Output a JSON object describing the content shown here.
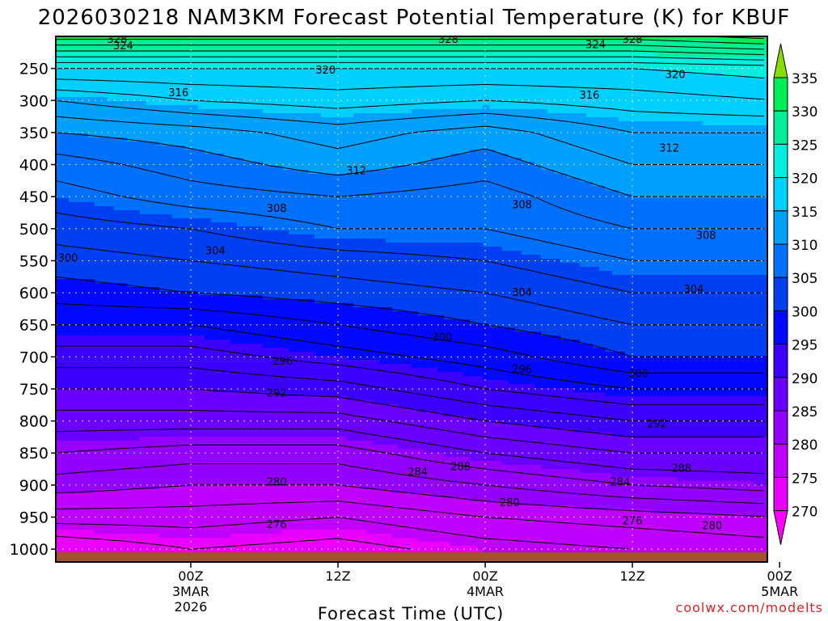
{
  "chart_data": {
    "type": "heatmap",
    "title": "2026030218 NAM3KM Forecast Potential Temperature (K) for KBUF",
    "xlabel": "Forecast Time (UTC)",
    "ylabel": "",
    "credit": "coolwx.com/modelts",
    "x_range_hours": [
      -5,
      53
    ],
    "x_ticks": [
      {
        "hour": 6,
        "lines": [
          "00Z",
          "3MAR",
          "2026"
        ]
      },
      {
        "hour": 18,
        "lines": [
          "12Z"
        ]
      },
      {
        "hour": 30,
        "lines": [
          "00Z",
          "4MAR"
        ]
      },
      {
        "hour": 42,
        "lines": [
          "12Z"
        ]
      },
      {
        "hour": 54,
        "lines": [
          "00Z",
          "5MAR"
        ]
      }
    ],
    "y_range_hpa": [
      200,
      1020
    ],
    "y_ticks": [
      250,
      300,
      350,
      400,
      450,
      500,
      550,
      600,
      650,
      700,
      750,
      800,
      850,
      900,
      950,
      1000
    ],
    "colorbar": {
      "levels": [
        270,
        275,
        280,
        285,
        290,
        295,
        300,
        305,
        310,
        315,
        320,
        325,
        330,
        335
      ],
      "colors": [
        "#ff00ff",
        "#ea00ff",
        "#c000ff",
        "#9400ff",
        "#6a00ff",
        "#3c00ff",
        "#0008ff",
        "#0040f0",
        "#0070ff",
        "#00a0ff",
        "#00d0ff",
        "#00eedd",
        "#00ee9a",
        "#00ee55",
        "#88dd00",
        "#ff00ff"
      ]
    },
    "profile_times_hours": [
      -5,
      6,
      18,
      30,
      42,
      54
    ],
    "theta_profiles": [
      {
        "pressure_hpa": 1000,
        "theta_k": [
          272,
          274,
          273,
          275,
          276,
          277
        ]
      },
      {
        "pressure_hpa": 950,
        "theta_k": [
          277,
          277,
          276,
          278,
          279,
          280
        ]
      },
      {
        "pressure_hpa": 900,
        "theta_k": [
          281,
          280,
          280,
          282,
          284,
          285
        ]
      },
      {
        "pressure_hpa": 850,
        "theta_k": [
          284,
          283,
          283,
          286,
          288,
          288
        ]
      },
      {
        "pressure_hpa": 800,
        "theta_k": [
          287,
          287,
          287,
          290,
          292,
          292
        ]
      },
      {
        "pressure_hpa": 750,
        "theta_k": [
          290,
          290,
          291,
          294,
          296,
          296
        ]
      },
      {
        "pressure_hpa": 700,
        "theta_k": [
          293,
          293,
          295,
          297,
          300,
          300
        ]
      },
      {
        "pressure_hpa": 650,
        "theta_k": [
          296,
          296,
          298,
          300,
          302,
          302
        ]
      },
      {
        "pressure_hpa": 600,
        "theta_k": [
          299,
          300,
          301,
          302,
          304,
          304
        ]
      },
      {
        "pressure_hpa": 550,
        "theta_k": [
          301,
          302,
          303,
          304,
          306,
          306
        ]
      },
      {
        "pressure_hpa": 500,
        "theta_k": [
          303,
          304,
          306,
          306,
          308,
          308
        ]
      },
      {
        "pressure_hpa": 450,
        "theta_k": [
          305,
          307,
          308,
          307,
          310,
          310
        ]
      },
      {
        "pressure_hpa": 400,
        "theta_k": [
          307,
          309,
          311,
          309,
          312,
          312
        ]
      },
      {
        "pressure_hpa": 350,
        "theta_k": [
          310,
          311,
          313,
          311,
          314,
          314
        ]
      },
      {
        "pressure_hpa": 300,
        "theta_k": [
          314,
          316,
          317,
          316,
          317,
          318
        ]
      },
      {
        "pressure_hpa": 250,
        "theta_k": [
          320,
          320,
          320,
          320,
          320,
          321
        ]
      },
      {
        "pressure_hpa": 200,
        "theta_k": [
          331,
          331,
          331,
          331,
          331,
          333
        ]
      }
    ],
    "contour_interval_k": 2,
    "contour_labels": [
      {
        "text": "328",
        "hour": 0,
        "p": 205
      },
      {
        "text": "324",
        "hour": 0.5,
        "p": 215
      },
      {
        "text": "328",
        "hour": 27,
        "p": 205
      },
      {
        "text": "324",
        "hour": 39,
        "p": 213
      },
      {
        "text": "328",
        "hour": 42,
        "p": 205
      },
      {
        "text": "320",
        "hour": 17,
        "p": 253
      },
      {
        "text": "320",
        "hour": 45.5,
        "p": 260
      },
      {
        "text": "316",
        "hour": 5,
        "p": 288
      },
      {
        "text": "316",
        "hour": 38.5,
        "p": 292
      },
      {
        "text": "312",
        "hour": 45,
        "p": 375
      },
      {
        "text": "312",
        "hour": 19.5,
        "p": 410
      },
      {
        "text": "308",
        "hour": 13,
        "p": 469
      },
      {
        "text": "308",
        "hour": 33,
        "p": 463
      },
      {
        "text": "308",
        "hour": 48,
        "p": 511
      },
      {
        "text": "300",
        "hour": -4,
        "p": 546
      },
      {
        "text": "304",
        "hour": 8,
        "p": 535
      },
      {
        "text": "304",
        "hour": 33,
        "p": 600
      },
      {
        "text": "304",
        "hour": 47,
        "p": 595
      },
      {
        "text": "300",
        "hour": 26.5,
        "p": 670
      },
      {
        "text": "296",
        "hour": 13.5,
        "p": 707
      },
      {
        "text": "296",
        "hour": 33,
        "p": 720
      },
      {
        "text": "300",
        "hour": 42.5,
        "p": 727
      },
      {
        "text": "292",
        "hour": 13,
        "p": 757
      },
      {
        "text": "292",
        "hour": 44,
        "p": 805
      },
      {
        "text": "288",
        "hour": 28,
        "p": 872
      },
      {
        "text": "288",
        "hour": 46,
        "p": 874
      },
      {
        "text": "284",
        "hour": 24.5,
        "p": 880
      },
      {
        "text": "284",
        "hour": 41,
        "p": 896
      },
      {
        "text": "280",
        "hour": 13,
        "p": 896
      },
      {
        "text": "280",
        "hour": 32,
        "p": 928
      },
      {
        "text": "280",
        "hour": 48.5,
        "p": 964
      },
      {
        "text": "276",
        "hour": 13,
        "p": 962
      },
      {
        "text": "276",
        "hour": 42,
        "p": 956
      }
    ],
    "terrain_pressure_hpa": 1005
  }
}
